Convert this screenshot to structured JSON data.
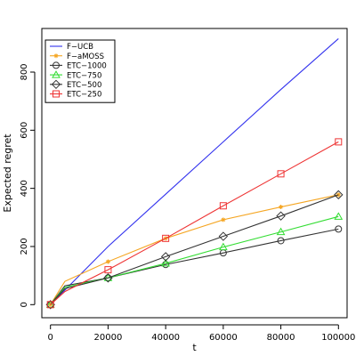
{
  "chart_data": {
    "type": "line",
    "title": "",
    "xlabel": "t",
    "ylabel": "Expected regret",
    "xlim": [
      -3000,
      103000
    ],
    "ylim": [
      -45,
      950
    ],
    "grid": false,
    "legend_position": "top-left",
    "x_ticks": [
      0,
      20000,
      40000,
      60000,
      80000,
      100000
    ],
    "y_ticks": [
      0,
      200,
      400,
      600,
      800
    ],
    "series": [
      {
        "name": "F−UCB",
        "color": "#3333ee",
        "marker": "none",
        "line": true,
        "x": [
          0,
          5000,
          20000,
          40000,
          60000,
          80000,
          100000
        ],
        "values": [
          0,
          50,
          200,
          380,
          560,
          740,
          915
        ]
      },
      {
        "name": "F−aMOSS",
        "color": "#f5a623",
        "marker": "star",
        "line": true,
        "x": [
          0,
          5000,
          20000,
          40000,
          60000,
          80000,
          100000
        ],
        "values": [
          0,
          80,
          148,
          228,
          292,
          336,
          378
        ]
      },
      {
        "name": "ETC−1000",
        "color": "#333333",
        "marker": "circle",
        "line": true,
        "x": [
          0,
          5000,
          20000,
          40000,
          60000,
          80000,
          100000
        ],
        "values": [
          0,
          65,
          92,
          138,
          178,
          220,
          260
        ]
      },
      {
        "name": "ETC−750",
        "color": "#33dd33",
        "marker": "triangle",
        "line": true,
        "x": [
          0,
          5000,
          20000,
          40000,
          60000,
          80000,
          100000
        ],
        "values": [
          0,
          60,
          92,
          142,
          198,
          250,
          303
        ]
      },
      {
        "name": "ETC−500",
        "color": "#333333",
        "marker": "diamond",
        "line": true,
        "x": [
          0,
          5000,
          20000,
          40000,
          60000,
          80000,
          100000
        ],
        "values": [
          0,
          55,
          92,
          165,
          235,
          305,
          378
        ]
      },
      {
        "name": "ETC−250",
        "color": "#ee3333",
        "marker": "square",
        "line": true,
        "x": [
          0,
          5000,
          20000,
          40000,
          60000,
          80000,
          100000
        ],
        "values": [
          0,
          45,
          120,
          228,
          340,
          450,
          560
        ]
      }
    ]
  }
}
